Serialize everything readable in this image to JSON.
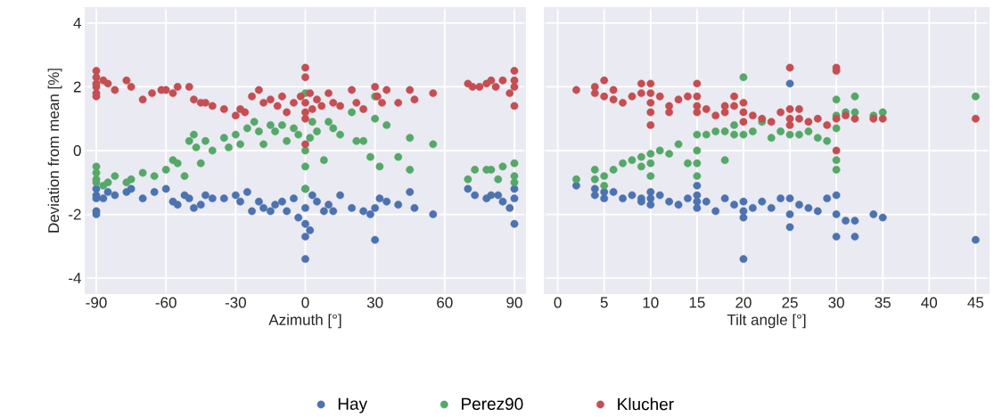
{
  "chart_data": [
    {
      "type": "scatter",
      "xlabel": "Azimuth [°]",
      "ylabel": "Deviation from mean [%]",
      "xlim": [
        -95,
        95
      ],
      "ylim": [
        -4.5,
        4.5
      ],
      "xticks": [
        -90,
        -60,
        -30,
        0,
        30,
        60,
        90
      ],
      "yticks": [
        -4,
        -2,
        0,
        2,
        4
      ],
      "grid": true,
      "legend": "bottom",
      "marker": "circle",
      "series": [
        {
          "name": "Hay",
          "color": "#4c72b0",
          "x": [
            -90,
            -90,
            -90,
            -90,
            -90,
            -87,
            -85,
            -82,
            -77,
            -75,
            -70,
            -65,
            -60,
            -57,
            -55,
            -52,
            -50,
            -48,
            -45,
            -43,
            -40,
            -35,
            -30,
            -28,
            -25,
            -23,
            -20,
            -18,
            -15,
            -13,
            -10,
            -8,
            -5,
            -3,
            0,
            0,
            0,
            0,
            0,
            2,
            3,
            5,
            8,
            10,
            12,
            15,
            20,
            25,
            28,
            30,
            30,
            32,
            35,
            40,
            45,
            47,
            55,
            70,
            73,
            78,
            80,
            83,
            85,
            88,
            90,
            90,
            90
          ],
          "values": [
            -1.2,
            -1.4,
            -1.5,
            -1.9,
            -2.0,
            -1.5,
            -1.3,
            -1.4,
            -1.3,
            -1.2,
            -1.5,
            -1.3,
            -1.2,
            -1.6,
            -1.7,
            -1.4,
            -1.5,
            -1.8,
            -1.7,
            -1.4,
            -1.5,
            -1.5,
            -1.4,
            -1.6,
            -1.3,
            -1.9,
            -1.6,
            -1.8,
            -1.9,
            -1.7,
            -1.6,
            -1.9,
            -1.5,
            -2.1,
            -3.4,
            -2.7,
            -2.3,
            -1.8,
            -1.2,
            -2.5,
            -1.4,
            -1.6,
            -1.9,
            -1.7,
            -1.9,
            -1.4,
            -1.8,
            -1.9,
            -2.0,
            -2.8,
            -1.8,
            -1.5,
            -1.6,
            -1.7,
            -1.3,
            -1.8,
            -2.0,
            -1.2,
            -1.4,
            -1.5,
            -1.4,
            -1.4,
            -1.6,
            -1.8,
            -1.2,
            -1.5,
            -2.3
          ]
        },
        {
          "name": "Perez90",
          "color": "#55a868",
          "x": [
            -90,
            -90,
            -90,
            -90,
            -87,
            -85,
            -82,
            -77,
            -75,
            -70,
            -65,
            -60,
            -57,
            -55,
            -52,
            -50,
            -48,
            -47,
            -45,
            -43,
            -40,
            -35,
            -33,
            -30,
            -28,
            -25,
            -22,
            -20,
            -18,
            -15,
            -13,
            -10,
            -8,
            -5,
            -3,
            0,
            0,
            0,
            0,
            2,
            3,
            5,
            8,
            10,
            12,
            15,
            20,
            22,
            25,
            28,
            30,
            30,
            32,
            35,
            40,
            45,
            45,
            55,
            70,
            73,
            78,
            80,
            83,
            85,
            90,
            90,
            90
          ],
          "values": [
            -0.5,
            -0.7,
            -0.9,
            -1.0,
            -1.1,
            -1.0,
            -0.8,
            -1.0,
            -0.9,
            -0.7,
            -0.8,
            -0.6,
            -0.3,
            -0.4,
            -0.8,
            0.3,
            0.5,
            0.1,
            -0.4,
            0.3,
            0.0,
            0.4,
            0.1,
            0.5,
            0.2,
            0.7,
            0.9,
            0.6,
            0.2,
            0.8,
            0.6,
            0.8,
            0.3,
            0.7,
            0.5,
            0.0,
            -0.5,
            -1.2,
            1.8,
            0.4,
            0.9,
            0.6,
            -0.3,
            0.9,
            0.7,
            0.5,
            1.2,
            0.3,
            0.3,
            -0.2,
            1.7,
            1.0,
            -0.5,
            0.8,
            -0.2,
            0.4,
            -0.6,
            0.2,
            -0.9,
            -0.6,
            -0.6,
            -0.6,
            -0.9,
            -0.5,
            -0.4,
            -0.8,
            -1.0
          ]
        },
        {
          "name": "Klucher",
          "color": "#c44e52",
          "x": [
            -90,
            -90,
            -90,
            -90,
            -90,
            -90,
            -87,
            -85,
            -82,
            -77,
            -75,
            -70,
            -66,
            -62,
            -60,
            -57,
            -55,
            -50,
            -48,
            -45,
            -43,
            -40,
            -35,
            -30,
            -28,
            -26,
            -23,
            -20,
            -18,
            -15,
            -12,
            -10,
            -8,
            -5,
            -2,
            0,
            0,
            0,
            0,
            0,
            0,
            2,
            3,
            5,
            7,
            10,
            12,
            15,
            20,
            22,
            25,
            30,
            31,
            33,
            35,
            40,
            45,
            47,
            55,
            70,
            72,
            75,
            78,
            80,
            82,
            85,
            88,
            90,
            90,
            90,
            90
          ],
          "values": [
            2.5,
            2.3,
            2.1,
            2.0,
            1.8,
            1.7,
            2.2,
            2.1,
            1.9,
            2.2,
            2.0,
            1.6,
            1.8,
            1.9,
            1.9,
            1.8,
            2.0,
            2.0,
            1.6,
            1.5,
            1.5,
            1.4,
            1.3,
            1.1,
            1.3,
            1.2,
            1.7,
            1.9,
            1.5,
            1.6,
            1.4,
            1.7,
            1.2,
            1.5,
            1.7,
            2.6,
            2.3,
            1.5,
            1.2,
            1.0,
            0.2,
            1.8,
            1.3,
            1.6,
            1.4,
            1.8,
            1.5,
            1.4,
            1.9,
            1.5,
            1.3,
            2.0,
            1.7,
            1.5,
            1.9,
            1.5,
            1.9,
            1.6,
            1.8,
            2.1,
            2.0,
            2.0,
            2.1,
            2.2,
            2.0,
            2.2,
            1.8,
            2.5,
            2.2,
            2.0,
            1.4
          ]
        }
      ]
    },
    {
      "type": "scatter",
      "xlabel": "Tilt angle [°]",
      "xlim": [
        -1.5,
        46.5
      ],
      "ylim": [
        -4.5,
        4.5
      ],
      "xticks": [
        0,
        5,
        10,
        15,
        20,
        25,
        30,
        35,
        40,
        45
      ],
      "yticks": [
        -4,
        -2,
        0,
        2,
        4
      ],
      "grid": true,
      "marker": "circle",
      "tick_labels": "x",
      "series": [
        {
          "color": "#4c72b0",
          "x": [
            2,
            4,
            4,
            5,
            5,
            6,
            7,
            8,
            9,
            9,
            10,
            10,
            10,
            11,
            12,
            13,
            14,
            15,
            15,
            15,
            15,
            16,
            17,
            18,
            19,
            20,
            20,
            20,
            20,
            21,
            22,
            23,
            24,
            25,
            25,
            25,
            25,
            26,
            27,
            28,
            29,
            30,
            30,
            30,
            31,
            32,
            32,
            34,
            35,
            45
          ],
          "values": [
            -1.1,
            -1.2,
            -1.4,
            -1.3,
            -1.5,
            -1.3,
            -1.5,
            -1.4,
            -1.5,
            -1.6,
            -1.3,
            -1.5,
            -1.7,
            -1.4,
            -1.6,
            -1.7,
            -1.5,
            -1.1,
            -1.4,
            -1.6,
            -1.8,
            -1.6,
            -1.9,
            -1.5,
            -1.7,
            -3.4,
            -1.9,
            -2.1,
            -1.6,
            -1.8,
            -1.6,
            -1.8,
            -1.5,
            2.1,
            -1.5,
            -2.0,
            -2.4,
            -1.7,
            -1.8,
            -1.9,
            -1.5,
            -1.4,
            -2.0,
            -2.7,
            -2.2,
            -2.2,
            -2.7,
            -2.0,
            -2.1,
            -2.8
          ]
        },
        {
          "color": "#55a868",
          "x": [
            2,
            4,
            4,
            5,
            5,
            6,
            7,
            8,
            9,
            9,
            10,
            10,
            10,
            11,
            12,
            13,
            14,
            15,
            15,
            15,
            15,
            16,
            17,
            18,
            18,
            19,
            19,
            20,
            20,
            21,
            22,
            23,
            24,
            25,
            26,
            27,
            28,
            29,
            30,
            30,
            30,
            30,
            30,
            31,
            32,
            32,
            34,
            35,
            45
          ],
          "values": [
            -0.9,
            -0.9,
            -0.6,
            -0.8,
            -1.1,
            -0.6,
            -0.4,
            -0.3,
            -0.5,
            -0.2,
            -0.1,
            -0.4,
            -0.8,
            0.0,
            -0.1,
            0.2,
            -0.4,
            0.5,
            0.0,
            -0.4,
            -0.8,
            0.5,
            0.6,
            0.6,
            -0.3,
            0.8,
            0.5,
            2.3,
            0.5,
            0.6,
            0.9,
            0.4,
            0.6,
            0.5,
            0.5,
            0.6,
            0.4,
            0.3,
            1.6,
            1.1,
            0.7,
            -0.3,
            -0.6,
            1.2,
            1.7,
            1.2,
            1.1,
            1.2,
            1.7
          ]
        },
        {
          "color": "#c44e52",
          "x": [
            2,
            4,
            4,
            5,
            5,
            6,
            6,
            7,
            8,
            9,
            9,
            10,
            10,
            10,
            10,
            10,
            11,
            12,
            12,
            13,
            14,
            15,
            15,
            15,
            15,
            16,
            17,
            18,
            18,
            19,
            19,
            20,
            20,
            20,
            21,
            22,
            23,
            24,
            25,
            25,
            25,
            25,
            26,
            26,
            27,
            28,
            29,
            30,
            30,
            30,
            30,
            31,
            32,
            34,
            35,
            45
          ],
          "values": [
            1.9,
            2.0,
            1.8,
            2.2,
            1.7,
            1.9,
            1.6,
            1.5,
            1.7,
            2.1,
            1.8,
            2.1,
            1.8,
            1.5,
            1.2,
            0.8,
            1.7,
            1.4,
            1.2,
            1.6,
            1.7,
            2.1,
            1.7,
            1.4,
            1.2,
            1.3,
            1.1,
            1.4,
            1.2,
            1.7,
            1.4,
            1.5,
            1.2,
            0.9,
            1.1,
            1.0,
            0.9,
            1.2,
            2.6,
            1.3,
            1.0,
            0.8,
            1.3,
            1.0,
            0.9,
            1.0,
            0.8,
            2.6,
            2.5,
            1.0,
            0.0,
            1.1,
            1.0,
            1.0,
            1.0,
            1.0
          ]
        }
      ]
    }
  ]
}
